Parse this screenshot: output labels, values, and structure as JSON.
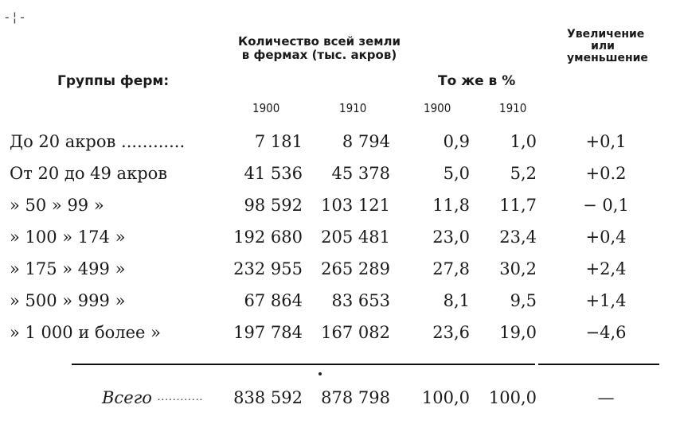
{
  "corner_mark": "-¦-",
  "headers": {
    "groups": "Группы ферм:",
    "land": "Количество всей земли в фермах (тыс. акров)",
    "percent": "То же в %",
    "change": "Увеличение или уменьшение"
  },
  "years": [
    "1900",
    "1910",
    "1900",
    "1910"
  ],
  "rows": [
    {
      "label": "До 20 акров ............",
      "land_1900": "7 181",
      "land_1910": "8 794",
      "pct_1900": "0,9",
      "pct_1910": "1,0",
      "change": "+0,1"
    },
    {
      "label": "От 20 до 49 акров",
      "land_1900": "41 536",
      "land_1910": "45 378",
      "pct_1900": "5,0",
      "pct_1910": "5,2",
      "change": "+0.2"
    },
    {
      "label": "» 50 » 99 »",
      "land_1900": "98 592",
      "land_1910": "103 121",
      "pct_1900": "11,8",
      "pct_1910": "11,7",
      "change": "− 0,1"
    },
    {
      "label": "» 100 » 174 »",
      "land_1900": "192 680",
      "land_1910": "205 481",
      "pct_1900": "23,0",
      "pct_1910": "23,4",
      "change": "+0,4"
    },
    {
      "label": "» 175 » 499 »",
      "land_1900": "232 955",
      "land_1910": "265 289",
      "pct_1900": "27,8",
      "pct_1910": "30,2",
      "change": "+2,4"
    },
    {
      "label": "» 500 » 999 »",
      "land_1900": "67 864",
      "land_1910": "83 653",
      "pct_1900": "8,1",
      "pct_1910": "9,5",
      "change": "+1,4"
    },
    {
      "label": "» 1 000 и более »",
      "land_1900": "197 784",
      "land_1910": "167 082",
      "pct_1900": "23,6",
      "pct_1910": "19,0",
      "change": "−4,6"
    }
  ],
  "total": {
    "label": "Всего",
    "leader": "............",
    "land_1900": "838 592",
    "land_1910": "878 798",
    "pct_1900": "100,0",
    "pct_1910": "100,0",
    "change": "—"
  }
}
